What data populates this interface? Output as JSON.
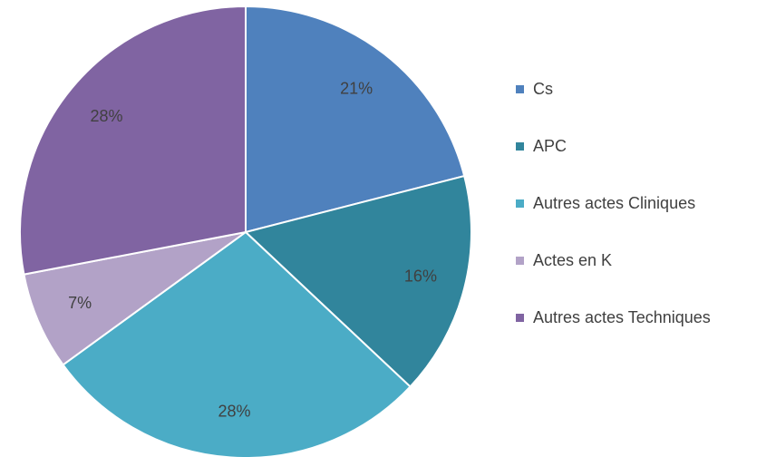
{
  "chart_data": {
    "type": "pie",
    "categories": [
      "Cs",
      "APC",
      "Autres actes Cliniques",
      "Actes en K",
      "Autres actes Techniques"
    ],
    "values": [
      21,
      16,
      28,
      7,
      28
    ],
    "value_labels": [
      "21%",
      "16%",
      "28%",
      "7%",
      "28%"
    ],
    "colors": [
      "#4f81bd",
      "#31859c",
      "#4bacc6",
      "#b2a2c7",
      "#8064a2"
    ],
    "legend": "right"
  }
}
